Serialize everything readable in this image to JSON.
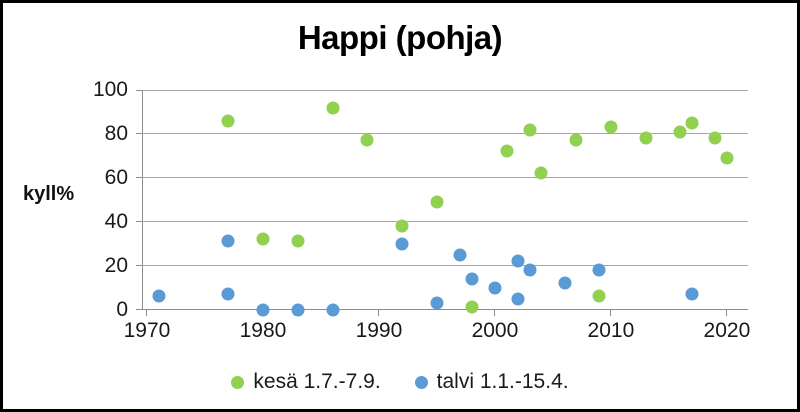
{
  "window": {
    "background_color": "#ffffff",
    "border_color": "#000000"
  },
  "chart_data": {
    "type": "scatter",
    "title": "Happi (pohja)",
    "ylabel": "kyll%",
    "xlabel": "",
    "xlim": [
      1969.57,
      2021.82
    ],
    "ylim": [
      0,
      100
    ],
    "x_ticks": [
      1970,
      1980,
      1990,
      2000,
      2010,
      2020
    ],
    "y_ticks": [
      0,
      20,
      40,
      60,
      80,
      100
    ],
    "grid": "horizontal-only",
    "gridline_color": "#a6a6a6",
    "legend_position": "bottom-center",
    "series": [
      {
        "name": "kesä 1.7.-7.9.",
        "color": "#92d050",
        "marker": "circle",
        "points": [
          [
            1977,
            86
          ],
          [
            1980,
            32
          ],
          [
            1983,
            31
          ],
          [
            1986,
            92
          ],
          [
            1989,
            77
          ],
          [
            1992,
            38
          ],
          [
            1995,
            49
          ],
          [
            1998,
            1
          ],
          [
            2001,
            72
          ],
          [
            2003,
            82
          ],
          [
            2004,
            62
          ],
          [
            2007,
            77
          ],
          [
            2009,
            6
          ],
          [
            2010,
            83
          ],
          [
            2013,
            78
          ],
          [
            2016,
            81
          ],
          [
            2017,
            85
          ],
          [
            2019,
            78
          ],
          [
            2020,
            69
          ]
        ]
      },
      {
        "name": "talvi 1.1.-15.4.",
        "color": "#5b9bd5",
        "marker": "circle",
        "points": [
          [
            1971,
            6
          ],
          [
            1977,
            31
          ],
          [
            1977,
            7
          ],
          [
            1980,
            0
          ],
          [
            1983,
            0
          ],
          [
            1986,
            0
          ],
          [
            1992,
            30
          ],
          [
            1995,
            3
          ],
          [
            1997,
            25
          ],
          [
            1998,
            14
          ],
          [
            2000,
            10
          ],
          [
            2002,
            22
          ],
          [
            2002,
            5
          ],
          [
            2003,
            18
          ],
          [
            2006,
            12
          ],
          [
            2009,
            18
          ],
          [
            2017,
            7
          ]
        ]
      }
    ]
  }
}
